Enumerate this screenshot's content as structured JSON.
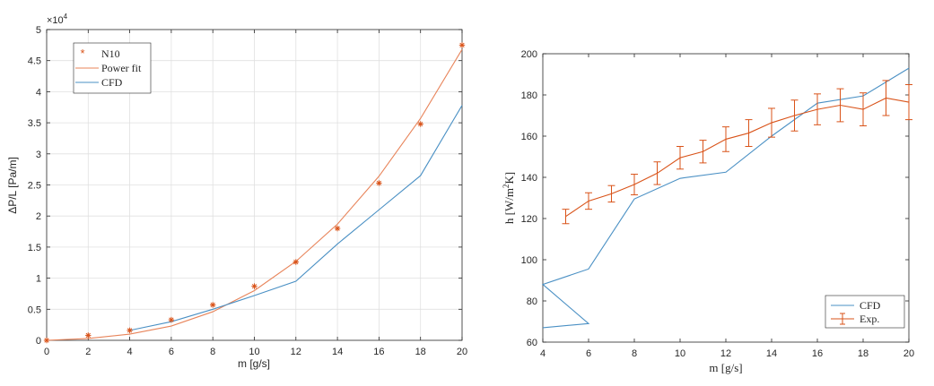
{
  "colors": {
    "n10": "#d95319",
    "power": "#e8845a",
    "cfd": "#4a90c4",
    "exp": "#d95319",
    "grid": "#e0e0e0",
    "axis": "#262626"
  },
  "chart_data": [
    {
      "type": "scatter",
      "xlabel": "m [g/s]",
      "ylabel": "ΔP/L [Pa/m]",
      "exponent_label": "×10",
      "exponent_power": "4",
      "xlim": [
        0,
        20
      ],
      "ylim": [
        0,
        5
      ],
      "xticks": [
        "0",
        "2",
        "4",
        "6",
        "8",
        "10",
        "12",
        "14",
        "16",
        "18",
        "20"
      ],
      "yticks": [
        "0",
        "0.5",
        "1",
        "1.5",
        "2",
        "2.5",
        "3",
        "3.5",
        "4",
        "4.5",
        "5"
      ],
      "grid": true,
      "legend_position": "top-left",
      "series": [
        {
          "name": "N10",
          "style": "markers",
          "x": [
            0,
            2,
            4,
            6,
            8,
            10,
            12,
            14,
            16,
            18,
            20
          ],
          "y": [
            0.0,
            0.08,
            0.16,
            0.33,
            0.57,
            0.87,
            1.26,
            1.8,
            2.53,
            3.48,
            4.75
          ]
        },
        {
          "name": "Power fit",
          "style": "line",
          "x": [
            0,
            2,
            4,
            6,
            8,
            10,
            12,
            14,
            16,
            18,
            20
          ],
          "y": [
            0.0,
            0.03,
            0.1,
            0.23,
            0.46,
            0.8,
            1.27,
            1.87,
            2.64,
            3.57,
            4.68
          ]
        },
        {
          "name": "CFD",
          "style": "line",
          "x": [
            4,
            6,
            8,
            10,
            12,
            14,
            16,
            18,
            20
          ],
          "y": [
            0.16,
            0.3,
            0.5,
            0.72,
            0.95,
            1.55,
            2.1,
            2.65,
            3.78
          ]
        }
      ]
    },
    {
      "type": "line",
      "xlabel": "m [g/s]",
      "ylabel_prefix": "h [W/m",
      "ylabel_sup": "2",
      "ylabel_suffix": "K]",
      "xlim": [
        4,
        20
      ],
      "ylim": [
        60,
        200
      ],
      "xticks": [
        "4",
        "6",
        "8",
        "10",
        "12",
        "14",
        "16",
        "18",
        "20"
      ],
      "yticks": [
        "60",
        "80",
        "100",
        "120",
        "140",
        "160",
        "180",
        "200"
      ],
      "grid": false,
      "legend_position": "bottom-right",
      "series": [
        {
          "name": "CFD",
          "style": "line",
          "x": [
            6,
            4,
            6,
            8,
            10,
            12,
            14,
            16,
            18,
            20
          ],
          "y": [
            69,
            88,
            95.5,
            129.5,
            139.5,
            142.5,
            160,
            176,
            179.5,
            193
          ]
        },
        {
          "name": "Exp.",
          "style": "errorbar",
          "x": [
            5,
            6,
            7,
            8,
            9,
            10,
            11,
            12,
            13,
            14,
            15,
            16,
            17,
            18,
            19,
            20
          ],
          "y": [
            121,
            128.5,
            132,
            136.5,
            142,
            149.5,
            152.5,
            158.5,
            161.5,
            166.5,
            170,
            173,
            175,
            173,
            178.5,
            176.5
          ],
          "err": [
            3.5,
            4,
            4,
            5,
            5.5,
            5.5,
            5.5,
            6,
            6.5,
            7,
            7.5,
            7.5,
            8,
            8,
            8.5,
            8.5
          ]
        }
      ]
    }
  ]
}
